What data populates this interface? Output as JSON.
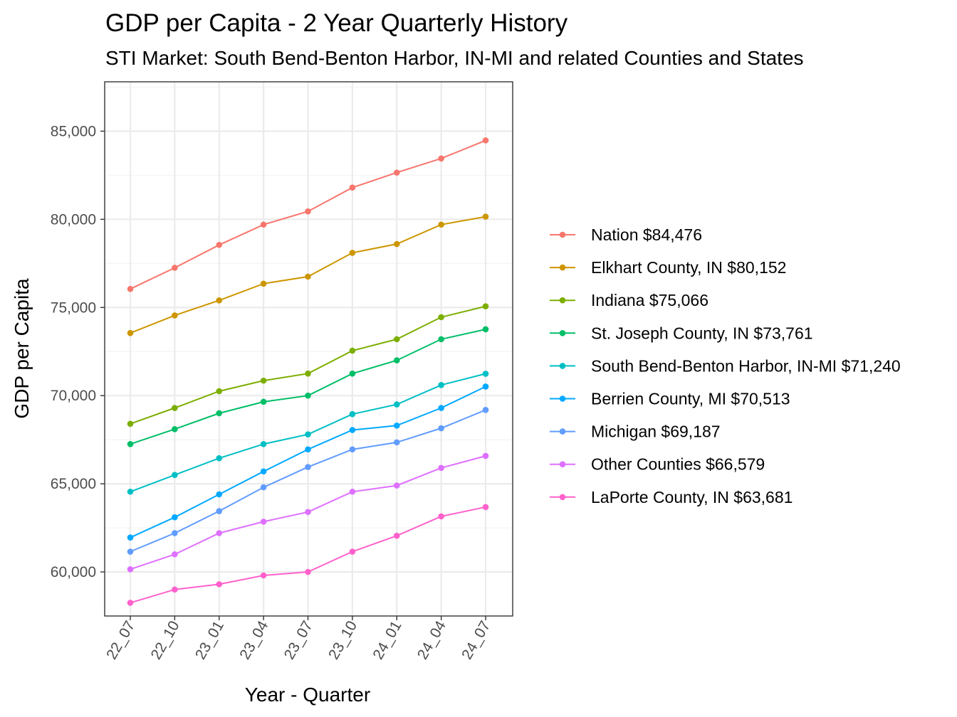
{
  "chart_data": {
    "type": "line",
    "title": "GDP per Capita - 2 Year Quarterly History",
    "subtitle": "STI Market: South Bend-Benton Harbor, IN-MI and related Counties and States",
    "xlabel": "Year - Quarter",
    "ylabel": "GDP per Capita",
    "categories": [
      "22_07",
      "22_10",
      "23_01",
      "23_04",
      "23_07",
      "23_10",
      "24_01",
      "24_04",
      "24_07"
    ],
    "ylim": [
      57500,
      87800
    ],
    "yticks": [
      60000,
      65000,
      70000,
      75000,
      80000,
      85000
    ],
    "ytick_labels": [
      "60,000",
      "65,000",
      "70,000",
      "75,000",
      "80,000",
      "85,000"
    ],
    "grid": true,
    "legend_position": "right",
    "series": [
      {
        "name": "Nation $84,476",
        "color": "#F8766D",
        "values": [
          76050,
          77250,
          78550,
          79700,
          80450,
          81800,
          82650,
          83450,
          84476
        ]
      },
      {
        "name": "Elkhart County, IN $80,152",
        "color": "#CD9600",
        "values": [
          73550,
          74550,
          75400,
          76350,
          76750,
          78100,
          78600,
          79700,
          80152
        ]
      },
      {
        "name": "Indiana $75,066",
        "color": "#7CAE00",
        "values": [
          68400,
          69300,
          70250,
          70850,
          71250,
          72550,
          73200,
          74450,
          75066
        ]
      },
      {
        "name": "St. Joseph County, IN $73,761",
        "color": "#00BE67",
        "values": [
          67250,
          68100,
          69000,
          69650,
          70000,
          71250,
          72000,
          73200,
          73761
        ]
      },
      {
        "name": "South Bend-Benton Harbor, IN-MI $71,240",
        "color": "#00BFC4",
        "values": [
          64550,
          65500,
          66450,
          67250,
          67800,
          68950,
          69500,
          70600,
          71240
        ]
      },
      {
        "name": "Berrien County, MI $70,513",
        "color": "#00A9FF",
        "values": [
          61950,
          63100,
          64400,
          65700,
          66950,
          68050,
          68300,
          69300,
          70513
        ]
      },
      {
        "name": "Michigan $69,187",
        "color": "#619CFF",
        "values": [
          61150,
          62200,
          63450,
          64800,
          65950,
          66950,
          67350,
          68150,
          69187
        ]
      },
      {
        "name": "Other Counties $66,579",
        "color": "#DE70FF",
        "values": [
          60150,
          61000,
          62200,
          62850,
          63400,
          64550,
          64900,
          65900,
          66579
        ]
      },
      {
        "name": "LaPorte County, IN $63,681",
        "color": "#FF61CC",
        "values": [
          58250,
          59000,
          59300,
          59800,
          60000,
          61150,
          62050,
          63150,
          63681
        ]
      }
    ]
  }
}
